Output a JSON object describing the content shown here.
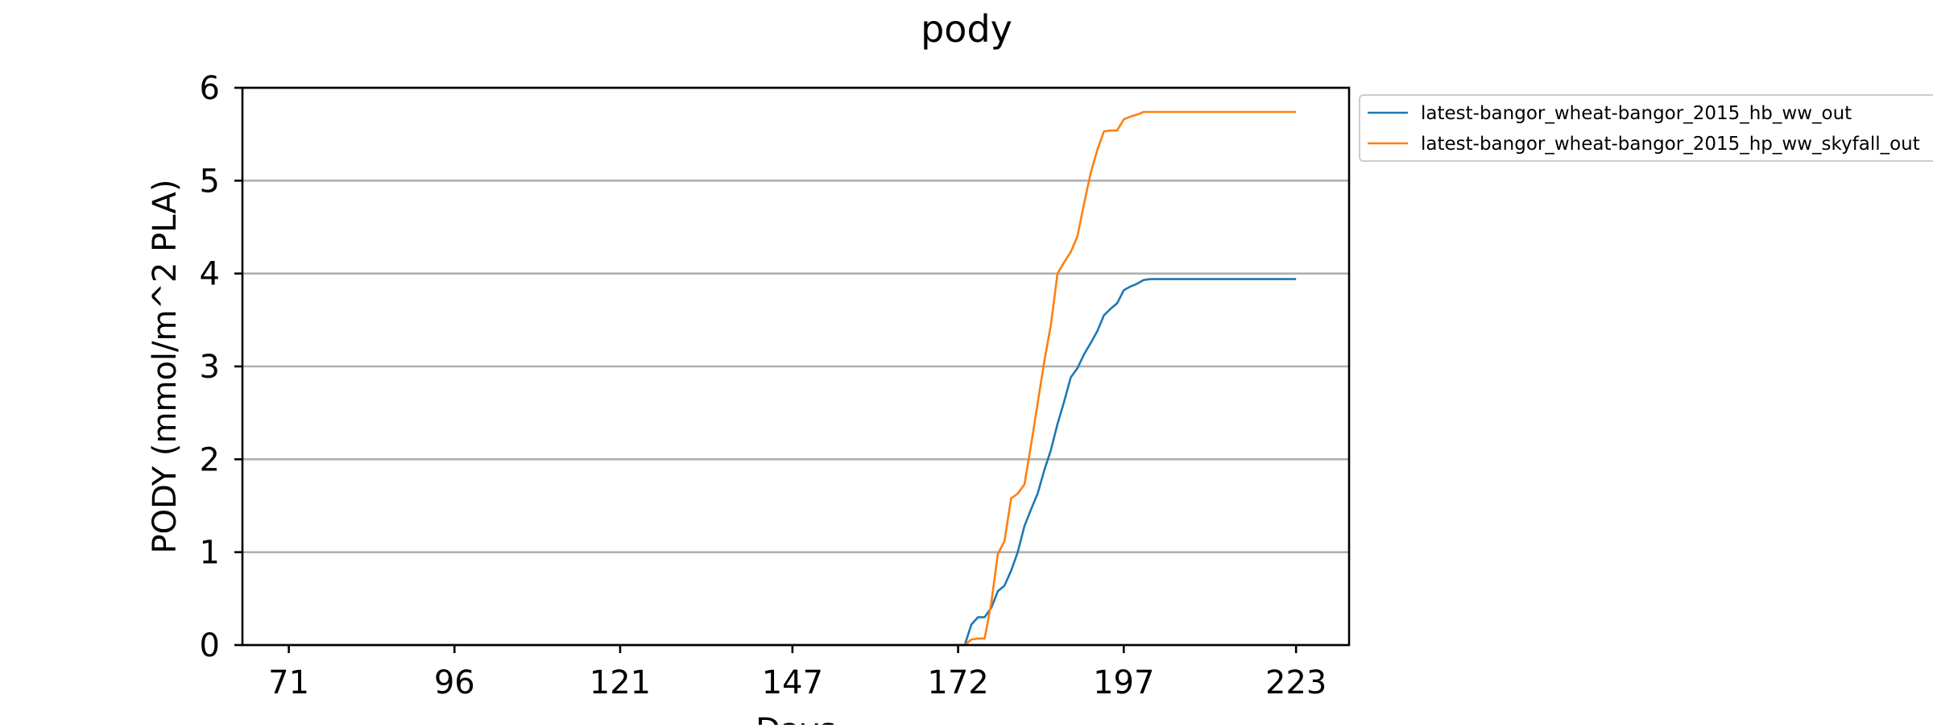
{
  "chart_data": {
    "type": "line",
    "title": "pody",
    "xlabel": "Days",
    "ylabel": "PODY (mmol/m^2 PLA)",
    "xlim": [
      64,
      231
    ],
    "ylim": [
      0,
      6
    ],
    "x_ticks": [
      71,
      96,
      121,
      147,
      172,
      197,
      223
    ],
    "y_ticks": [
      0,
      1,
      2,
      3,
      4,
      5,
      6
    ],
    "grid": "horizontal",
    "legend_position": "outside-top-right",
    "series": [
      {
        "name": "latest-bangor_wheat-bangor_2015_hb_ww_out",
        "color": "#1f77b4",
        "points": [
          [
            71,
            0
          ],
          [
            172,
            0
          ],
          [
            173,
            0
          ],
          [
            174,
            0.22
          ],
          [
            175,
            0.3
          ],
          [
            176,
            0.3
          ],
          [
            177,
            0.4
          ],
          [
            178,
            0.58
          ],
          [
            179,
            0.64
          ],
          [
            180,
            0.8
          ],
          [
            181,
            1.0
          ],
          [
            182,
            1.28
          ],
          [
            183,
            1.46
          ],
          [
            184,
            1.63
          ],
          [
            185,
            1.88
          ],
          [
            186,
            2.1
          ],
          [
            187,
            2.38
          ],
          [
            188,
            2.62
          ],
          [
            189,
            2.88
          ],
          [
            190,
            2.98
          ],
          [
            191,
            3.13
          ],
          [
            192,
            3.25
          ],
          [
            193,
            3.38
          ],
          [
            194,
            3.55
          ],
          [
            195,
            3.62
          ],
          [
            196,
            3.68
          ],
          [
            197,
            3.82
          ],
          [
            198,
            3.86
          ],
          [
            199,
            3.89
          ],
          [
            200,
            3.93
          ],
          [
            201,
            3.94
          ],
          [
            205,
            3.94
          ],
          [
            210,
            3.94
          ],
          [
            223,
            3.94
          ]
        ]
      },
      {
        "name": "latest-bangor_wheat-bangor_2015_hp_ww_skyfall_out",
        "color": "#ff7f0e",
        "points": [
          [
            71,
            0
          ],
          [
            172,
            0
          ],
          [
            173,
            0
          ],
          [
            174,
            0.06
          ],
          [
            175,
            0.07
          ],
          [
            176,
            0.07
          ],
          [
            177,
            0.45
          ],
          [
            178,
            0.98
          ],
          [
            179,
            1.12
          ],
          [
            180,
            1.58
          ],
          [
            181,
            1.63
          ],
          [
            182,
            1.73
          ],
          [
            183,
            2.15
          ],
          [
            184,
            2.6
          ],
          [
            185,
            3.05
          ],
          [
            186,
            3.45
          ],
          [
            187,
            4.0
          ],
          [
            188,
            4.12
          ],
          [
            189,
            4.23
          ],
          [
            190,
            4.4
          ],
          [
            191,
            4.75
          ],
          [
            192,
            5.08
          ],
          [
            193,
            5.33
          ],
          [
            194,
            5.53
          ],
          [
            195,
            5.54
          ],
          [
            196,
            5.54
          ],
          [
            197,
            5.66
          ],
          [
            198,
            5.69
          ],
          [
            199,
            5.71
          ],
          [
            200,
            5.74
          ],
          [
            201,
            5.74
          ],
          [
            205,
            5.74
          ],
          [
            210,
            5.74
          ],
          [
            223,
            5.74
          ]
        ]
      }
    ]
  }
}
